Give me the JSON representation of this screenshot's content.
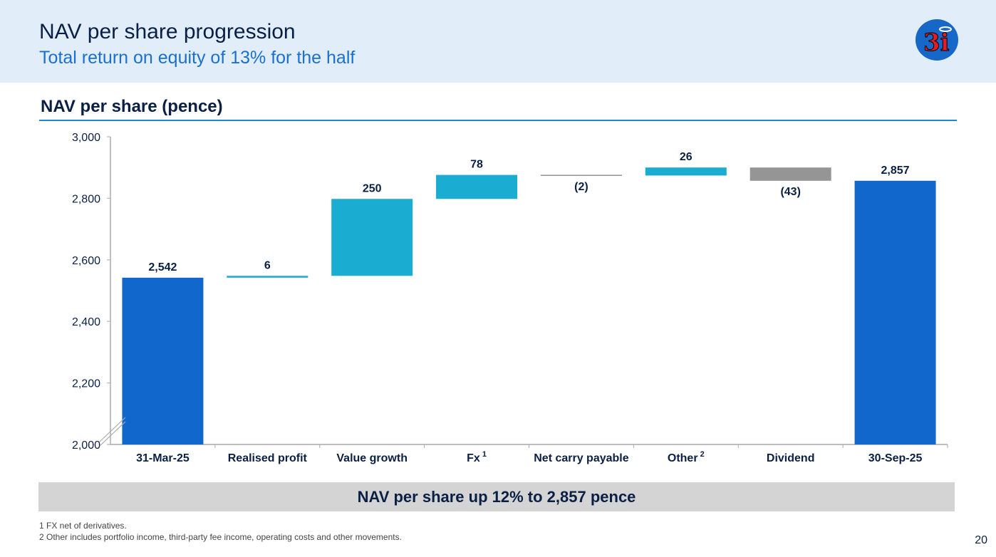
{
  "header": {
    "title": "NAV per share progression",
    "subtitle": "Total return on equity of 13% for the half",
    "logo_text": "3i"
  },
  "chart_title": "NAV per share (pence)",
  "chart_data": {
    "type": "waterfall",
    "title": "NAV per share (pence)",
    "ylim": [
      2000,
      3000
    ],
    "yticks": [
      "2,000",
      "2,200",
      "2,400",
      "2,600",
      "2,800",
      "3,000"
    ],
    "ytick_values": [
      2000,
      2200,
      2400,
      2600,
      2800,
      3000
    ],
    "axis_break": true,
    "categories": [
      "31-Mar-25",
      "Realised profit",
      "Value growth",
      "Fx",
      "Net carry payable",
      "Other",
      "Dividend",
      "30-Sep-25"
    ],
    "superscripts": [
      "",
      "",
      "",
      "1",
      "",
      "2",
      "",
      ""
    ],
    "values": [
      2542,
      6,
      250,
      78,
      -2,
      26,
      -43,
      2857
    ],
    "kinds": [
      "total",
      "up",
      "up",
      "up",
      "down",
      "up",
      "down",
      "total"
    ],
    "labels": [
      "2,542",
      "6",
      "250",
      "78",
      "(2)",
      "26",
      "(43)",
      "2,857"
    ]
  },
  "colors": {
    "total": "#1167cc",
    "up": "#1badd1",
    "down": "#959595",
    "thin_down": "#777777"
  },
  "banner": "NAV per share up 12% to 2,857 pence",
  "footnotes": [
    "1 FX net of derivatives.",
    "2 Other includes portfolio income, third-party fee income, operating costs and other movements."
  ],
  "page_number": "20"
}
